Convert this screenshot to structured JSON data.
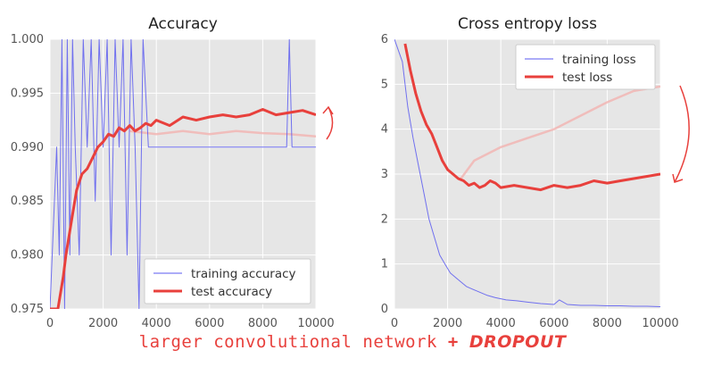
{
  "caption": {
    "text": "larger convolutional network",
    "plus": "+",
    "emphasis": "DROPOUT",
    "color": "#e8403c"
  },
  "colors": {
    "training": "#5a5af0",
    "test": "#e8403c",
    "test_faded": "#f2b3b0",
    "plot_bg": "#e6e6e6",
    "grid": "#ffffff",
    "arrow": "#e8403c"
  },
  "chart_data": [
    {
      "type": "line",
      "title": "Accuracy",
      "xlabel": "",
      "ylabel": "",
      "xlim": [
        0,
        10000
      ],
      "ylim": [
        0.975,
        1.0
      ],
      "x_ticks": [
        0,
        2000,
        4000,
        6000,
        8000,
        10000
      ],
      "x_tick_labels": [
        "0",
        "2000",
        "4000",
        "6000",
        "8000",
        "10000"
      ],
      "y_ticks": [
        0.975,
        0.98,
        0.985,
        0.99,
        0.995,
        1.0
      ],
      "y_tick_labels": [
        "0.975",
        "0.980",
        "0.985",
        "0.990",
        "0.995",
        "1.000"
      ],
      "grid": true,
      "legend_position": "bottom-right",
      "annotation_arrow": "curved arrow pointing up at right of plot",
      "series": [
        {
          "name": "training accuracy",
          "style": "thin noisy line",
          "x": [
            0,
            250,
            350,
            450,
            550,
            650,
            750,
            850,
            950,
            1100,
            1250,
            1400,
            1550,
            1700,
            1850,
            2000,
            2150,
            2300,
            2450,
            2600,
            2750,
            2900,
            3050,
            3200,
            3350,
            3500,
            3700,
            4000,
            5000,
            6000,
            7000,
            8000,
            8900,
            9000,
            9100,
            9500,
            10000
          ],
          "y": [
            0.975,
            0.99,
            0.98,
            1.0,
            0.975,
            1.0,
            0.98,
            1.0,
            0.99,
            0.98,
            1.0,
            0.99,
            1.0,
            0.985,
            1.0,
            0.99,
            1.0,
            0.98,
            1.0,
            0.99,
            1.0,
            0.98,
            1.0,
            0.99,
            0.975,
            1.0,
            0.99,
            0.99,
            0.99,
            0.99,
            0.99,
            0.99,
            0.99,
            1.0,
            0.99,
            0.99,
            0.99
          ]
        },
        {
          "name": "test accuracy",
          "style": "thick line",
          "x": [
            0,
            300,
            500,
            600,
            800,
            1000,
            1200,
            1400,
            1600,
            1800,
            2000,
            2200,
            2400,
            2600,
            2800,
            3000,
            3200,
            3400,
            3600,
            3800,
            4000,
            4500,
            5000,
            5500,
            6000,
            6500,
            7000,
            7500,
            8000,
            8500,
            9000,
            9500,
            10000
          ],
          "y": [
            0.975,
            0.975,
            0.978,
            0.98,
            0.983,
            0.986,
            0.9875,
            0.988,
            0.989,
            0.99,
            0.9905,
            0.9912,
            0.991,
            0.9918,
            0.9915,
            0.992,
            0.9915,
            0.9918,
            0.9922,
            0.992,
            0.9925,
            0.992,
            0.9928,
            0.9925,
            0.9928,
            0.993,
            0.9928,
            0.993,
            0.9935,
            0.993,
            0.9932,
            0.9934,
            0.993
          ]
        },
        {
          "name": "",
          "style": "faded thick line",
          "x": [
            3000,
            4000,
            5000,
            6000,
            7000,
            8000,
            9000,
            10000
          ],
          "y": [
            0.9915,
            0.9912,
            0.9915,
            0.9912,
            0.9915,
            0.9913,
            0.9912,
            0.991
          ]
        }
      ]
    },
    {
      "type": "line",
      "title": "Cross entropy loss",
      "xlabel": "",
      "ylabel": "",
      "xlim": [
        0,
        10000
      ],
      "ylim": [
        0,
        6
      ],
      "x_ticks": [
        0,
        2000,
        4000,
        6000,
        8000,
        10000
      ],
      "x_tick_labels": [
        "0",
        "2000",
        "4000",
        "6000",
        "8000",
        "10000"
      ],
      "y_ticks": [
        0,
        1,
        2,
        3,
        4,
        5,
        6
      ],
      "y_tick_labels": [
        "0",
        "1",
        "2",
        "3",
        "4",
        "5",
        "6"
      ],
      "grid": true,
      "legend_position": "top-right",
      "annotation_arrow": "curved arrow pointing down at right of plot",
      "series": [
        {
          "name": "training loss",
          "style": "thin noisy line",
          "x": [
            0,
            300,
            500,
            700,
            900,
            1100,
            1300,
            1500,
            1700,
            1900,
            2100,
            2300,
            2500,
            2700,
            2900,
            3100,
            3300,
            3500,
            3800,
            4200,
            4600,
            5000,
            5500,
            6000,
            6200,
            6500,
            7000,
            7500,
            8000,
            8500,
            9000,
            9500,
            10000
          ],
          "y": [
            6,
            5.5,
            4.5,
            3.8,
            3.2,
            2.6,
            2.0,
            1.6,
            1.2,
            1.0,
            0.8,
            0.7,
            0.6,
            0.5,
            0.45,
            0.4,
            0.35,
            0.3,
            0.25,
            0.2,
            0.18,
            0.15,
            0.12,
            0.1,
            0.2,
            0.1,
            0.08,
            0.08,
            0.07,
            0.07,
            0.06,
            0.06,
            0.05
          ]
        },
        {
          "name": "test loss",
          "style": "thick line",
          "x": [
            400,
            600,
            800,
            1000,
            1200,
            1400,
            1600,
            1800,
            2000,
            2200,
            2400,
            2600,
            2800,
            3000,
            3200,
            3400,
            3600,
            3800,
            4000,
            4500,
            5000,
            5500,
            6000,
            6500,
            7000,
            7500,
            8000,
            8500,
            9000,
            9500,
            10000
          ],
          "y": [
            5.9,
            5.3,
            4.8,
            4.4,
            4.1,
            3.9,
            3.6,
            3.3,
            3.1,
            3.0,
            2.9,
            2.85,
            2.75,
            2.8,
            2.7,
            2.75,
            2.85,
            2.8,
            2.7,
            2.75,
            2.7,
            2.65,
            2.75,
            2.7,
            2.75,
            2.85,
            2.8,
            2.85,
            2.9,
            2.95,
            3.0
          ]
        },
        {
          "name": "",
          "style": "faded thick line",
          "x": [
            2500,
            3000,
            4000,
            5000,
            6000,
            7000,
            8000,
            9000,
            10000
          ],
          "y": [
            2.9,
            3.3,
            3.6,
            3.8,
            4.0,
            4.3,
            4.6,
            4.85,
            4.95
          ]
        }
      ]
    }
  ]
}
